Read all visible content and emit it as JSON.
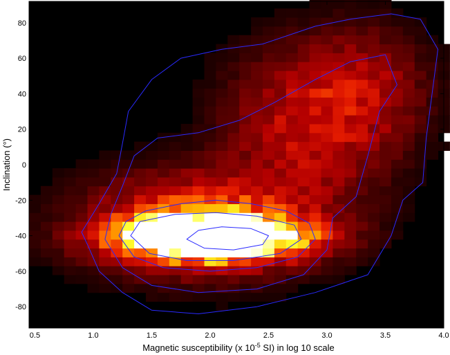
{
  "chart_data": {
    "type": "heatmap",
    "title": "",
    "xlabel_parts": [
      "Magnetic susceptibility  (x 10",
      "-5",
      " SI) in log 10 scale"
    ],
    "ylabel": "Inclination (°)",
    "xlim": [
      0.45,
      4.0
    ],
    "ylim": [
      -92,
      92
    ],
    "xticks": [
      0.5,
      1.0,
      1.5,
      2.0,
      2.5,
      3.0,
      3.5,
      4.0
    ],
    "xtick_labels": [
      "0.5",
      "1.0",
      "1.5",
      "2.0",
      "2.5",
      "3.0",
      "3.5",
      "4.0"
    ],
    "yticks": [
      -80,
      -60,
      -40,
      -20,
      0,
      20,
      40,
      60,
      80
    ],
    "ytick_labels": [
      "-80",
      "-60",
      "-40",
      "-20",
      "0",
      "20",
      "40",
      "60",
      "80"
    ],
    "colormap": [
      "#000000",
      "#3a0000",
      "#7a0000",
      "#b40000",
      "#e61c00",
      "#ff6a00",
      "#ffb400",
      "#ffff30",
      "#ffffff"
    ],
    "contour_color": "#2a2aff",
    "density_model": {
      "main_peak": {
        "x": 2.0,
        "y": -41,
        "sx": 0.48,
        "sy": 7.5,
        "amp": 1.0
      },
      "diffuse": {
        "x": 1.95,
        "y": -33,
        "sx": 0.62,
        "sy": 18,
        "amp": 0.3
      },
      "upper_band": {
        "x": 2.85,
        "y": 22,
        "sx": 0.45,
        "sy": 28,
        "amp": 0.17
      },
      "upper_right": {
        "x": 3.35,
        "y": 45,
        "sx": 0.35,
        "sy": 22,
        "amp": 0.1
      }
    },
    "contours": [
      {
        "level": 0.02,
        "points": [
          [
            0.95,
            -45
          ],
          [
            0.9,
            -38
          ],
          [
            1.05,
            -22
          ],
          [
            1.2,
            -5
          ],
          [
            1.25,
            12
          ],
          [
            1.3,
            30
          ],
          [
            1.5,
            48
          ],
          [
            1.75,
            60
          ],
          [
            2.1,
            65
          ],
          [
            2.45,
            68
          ],
          [
            2.9,
            78
          ],
          [
            3.2,
            82
          ],
          [
            3.55,
            85
          ],
          [
            3.8,
            82
          ],
          [
            3.95,
            65
          ],
          [
            3.9,
            40
          ],
          [
            3.85,
            15
          ],
          [
            3.82,
            -10
          ],
          [
            3.65,
            -20
          ],
          [
            3.55,
            -40
          ],
          [
            3.35,
            -62
          ],
          [
            2.9,
            -72
          ],
          [
            2.4,
            -80
          ],
          [
            1.9,
            -84
          ],
          [
            1.5,
            -82
          ],
          [
            1.25,
            -72
          ],
          [
            1.05,
            -60
          ]
        ]
      },
      {
        "level": 0.06,
        "points": [
          [
            1.1,
            -42
          ],
          [
            1.15,
            -28
          ],
          [
            1.25,
            -12
          ],
          [
            1.35,
            5
          ],
          [
            1.55,
            15
          ],
          [
            1.9,
            18
          ],
          [
            2.25,
            25
          ],
          [
            2.55,
            35
          ],
          [
            2.9,
            48
          ],
          [
            3.2,
            58
          ],
          [
            3.5,
            62
          ],
          [
            3.6,
            45
          ],
          [
            3.45,
            30
          ],
          [
            3.35,
            5
          ],
          [
            3.25,
            -18
          ],
          [
            3.05,
            -30
          ],
          [
            3.0,
            -48
          ],
          [
            2.8,
            -62
          ],
          [
            2.4,
            -70
          ],
          [
            1.9,
            -72
          ],
          [
            1.5,
            -68
          ],
          [
            1.25,
            -58
          ]
        ]
      },
      {
        "level": 0.18,
        "points": [
          [
            1.22,
            -40
          ],
          [
            1.28,
            -32
          ],
          [
            1.45,
            -26
          ],
          [
            1.75,
            -22
          ],
          [
            2.05,
            -20
          ],
          [
            2.35,
            -22
          ],
          [
            2.65,
            -26
          ],
          [
            2.85,
            -33
          ],
          [
            2.9,
            -42
          ],
          [
            2.75,
            -52
          ],
          [
            2.4,
            -58
          ],
          [
            2.0,
            -60
          ],
          [
            1.6,
            -58
          ],
          [
            1.35,
            -52
          ]
        ]
      },
      {
        "level": 0.45,
        "points": [
          [
            1.32,
            -40
          ],
          [
            1.4,
            -32
          ],
          [
            1.7,
            -28
          ],
          [
            2.05,
            -27
          ],
          [
            2.4,
            -29
          ],
          [
            2.72,
            -34
          ],
          [
            2.78,
            -42
          ],
          [
            2.6,
            -50
          ],
          [
            2.2,
            -54
          ],
          [
            1.8,
            -54
          ],
          [
            1.48,
            -50
          ]
        ]
      },
      {
        "level": 0.9,
        "points": [
          [
            1.8,
            -42
          ],
          [
            1.9,
            -37
          ],
          [
            2.1,
            -35
          ],
          [
            2.35,
            -36
          ],
          [
            2.5,
            -40
          ],
          [
            2.45,
            -45
          ],
          [
            2.2,
            -48
          ],
          [
            1.95,
            -47
          ]
        ]
      }
    ]
  }
}
